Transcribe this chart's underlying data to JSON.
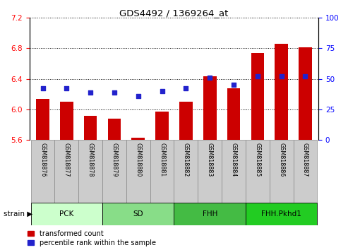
{
  "title": "GDS4492 / 1369264_at",
  "samples": [
    "GSM818876",
    "GSM818877",
    "GSM818878",
    "GSM818879",
    "GSM818880",
    "GSM818881",
    "GSM818882",
    "GSM818883",
    "GSM818884",
    "GSM818885",
    "GSM818886",
    "GSM818887"
  ],
  "bar_values": [
    6.14,
    6.1,
    5.92,
    5.88,
    5.63,
    5.97,
    6.1,
    6.43,
    6.28,
    6.74,
    6.86,
    6.81
  ],
  "percentile_values": [
    42,
    42,
    39,
    39,
    36,
    40,
    42,
    51,
    45,
    52,
    52,
    52
  ],
  "ylim_left": [
    5.6,
    7.2
  ],
  "ylim_right": [
    0,
    100
  ],
  "yticks_left": [
    5.6,
    6.0,
    6.4,
    6.8,
    7.2
  ],
  "yticks_right": [
    0,
    25,
    50,
    75,
    100
  ],
  "bar_color": "#cc0000",
  "dot_color": "#2222cc",
  "bar_bottom": 5.6,
  "groups": [
    {
      "label": "PCK",
      "start": 0,
      "end": 2,
      "color": "#ccffcc"
    },
    {
      "label": "SD",
      "start": 3,
      "end": 5,
      "color": "#88dd88"
    },
    {
      "label": "FHH",
      "start": 6,
      "end": 8,
      "color": "#44bb44"
    },
    {
      "label": "FHH.Pkhd1",
      "start": 9,
      "end": 11,
      "color": "#22cc22"
    }
  ],
  "legend_bar_label": "transformed count",
  "legend_dot_label": "percentile rank within the sample",
  "sample_box_color": "#cccccc",
  "sample_box_edge": "#888888"
}
